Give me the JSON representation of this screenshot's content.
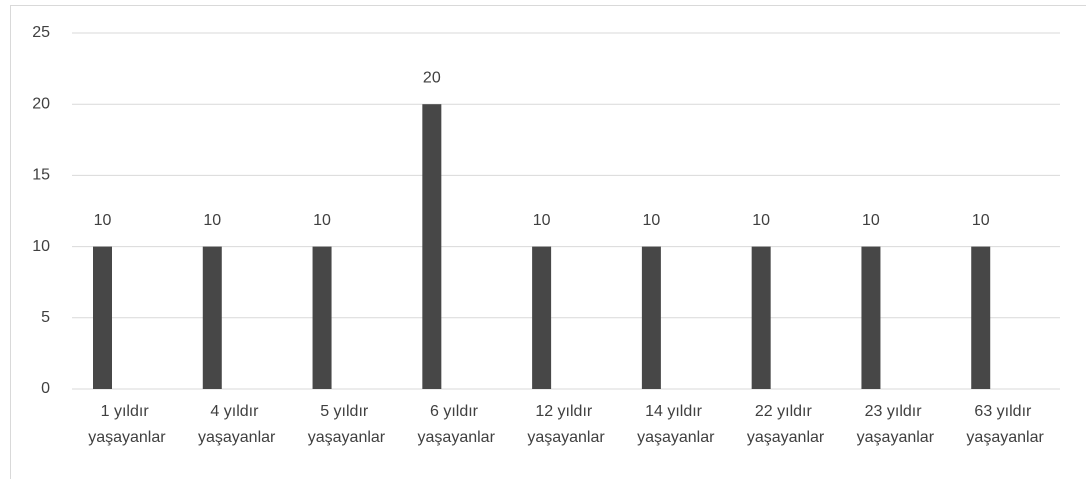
{
  "chart_data": {
    "type": "bar",
    "categories": [
      "1 yıldır yaşayanlar",
      "4 yıldır yaşayanlar",
      "5 yıldır yaşayanlar",
      "6 yıldır yaşayanlar",
      "12 yıldır yaşayanlar",
      "14 yıldır yaşayanlar",
      "22 yıldır yaşayanlar",
      "23 yıldır yaşayanlar",
      "63 yıldır yaşayanlar"
    ],
    "values": [
      10,
      10,
      10,
      20,
      10,
      10,
      10,
      10,
      10
    ],
    "color": "#474747",
    "ylim": [
      0,
      25
    ],
    "yticks": [
      0,
      5,
      10,
      15,
      20,
      25
    ],
    "grid": true
  }
}
